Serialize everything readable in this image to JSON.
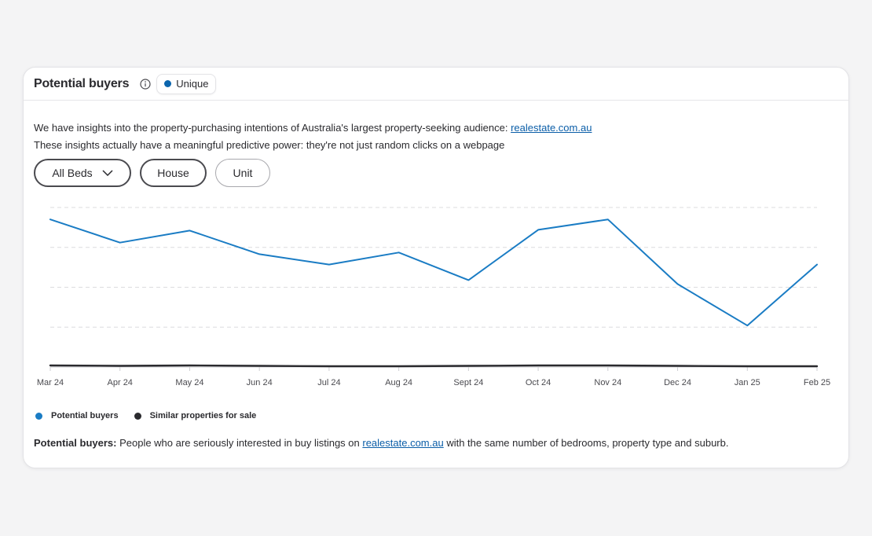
{
  "card": {
    "title": "Potential buyers",
    "badge_label": "Unique",
    "info_icon": "info-icon"
  },
  "intro": {
    "line1_text": "We have insights into the property-purchasing intentions of Australia's largest property-seeking audience: ",
    "line1_link": "realestate.com.au",
    "line2_text": "These insights actually have a meaningful predictive power: they're not just random clicks on a webpage"
  },
  "filters": {
    "beds_label": "All Beds",
    "house_label": "House",
    "unit_label": "Unit"
  },
  "footnote": {
    "term": "Potential buyers:",
    "text_before": " People who are seriously interested in buy listings on ",
    "link": "realestate.com.au",
    "text_after": " with the same number of bedrooms, property type and suburb."
  },
  "colors": {
    "primary": "#1a7cc4",
    "secondary": "#2a2a2e",
    "badge_dot": "#0b65ad"
  },
  "chart_data": {
    "type": "line",
    "categories": [
      "Mar 24",
      "Apr 24",
      "May 24",
      "Jun 24",
      "Jul 24",
      "Aug 24",
      "Sept 24",
      "Oct 24",
      "Nov 24",
      "Dec 24",
      "Jan 25",
      "Feb 25"
    ],
    "ylim": [
      0,
      4
    ],
    "grid": true,
    "legend_position": "bottom-left",
    "series": [
      {
        "name": "Potential buyers",
        "color": "#1a7cc4",
        "values": [
          3.7,
          3.12,
          3.42,
          2.83,
          2.57,
          2.87,
          2.18,
          3.44,
          3.7,
          2.08,
          1.04,
          2.57
        ]
      },
      {
        "name": "Similar properties for sale",
        "color": "#2a2a2e",
        "values": [
          0.04,
          0.03,
          0.04,
          0.03,
          0.02,
          0.02,
          0.03,
          0.04,
          0.04,
          0.03,
          0.02,
          0.02
        ]
      }
    ]
  }
}
